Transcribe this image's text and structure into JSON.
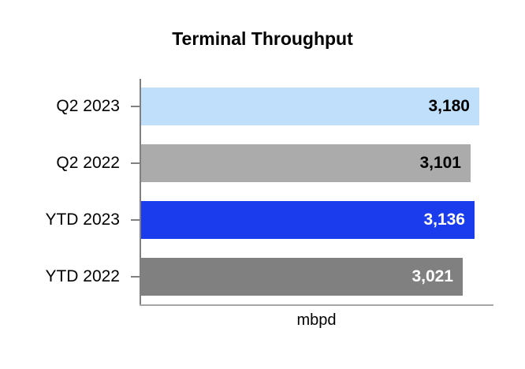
{
  "title": "Terminal Throughput",
  "xlabel": "mbpd",
  "colors": {
    "background": "#ffffff",
    "y_axis_line": "#808080",
    "x_axis_line": "#a6a6a6",
    "tick": "#808080",
    "title_text": "#000000",
    "category_text": "#000000"
  },
  "chart_data": {
    "type": "bar",
    "orientation": "horizontal",
    "title": "Terminal Throughput",
    "xlabel": "mbpd",
    "categories": [
      "Q2 2023",
      "Q2 2022",
      "YTD 2023",
      "YTD 2022"
    ],
    "values": [
      3180,
      3101,
      3136,
      3021
    ],
    "value_labels": [
      "3,180",
      "3,101",
      "3,136",
      "3,021"
    ],
    "bar_colors": [
      "#bfdffb",
      "#ababab",
      "#1b3cec",
      "#808080"
    ],
    "value_label_colors": [
      "#000000",
      "#000000",
      "#ffffff",
      "#ffffff"
    ],
    "xlim": [
      0,
      3313
    ],
    "grid": false,
    "legend": false,
    "value_labels_position": "inside-end"
  },
  "layout_note": ""
}
